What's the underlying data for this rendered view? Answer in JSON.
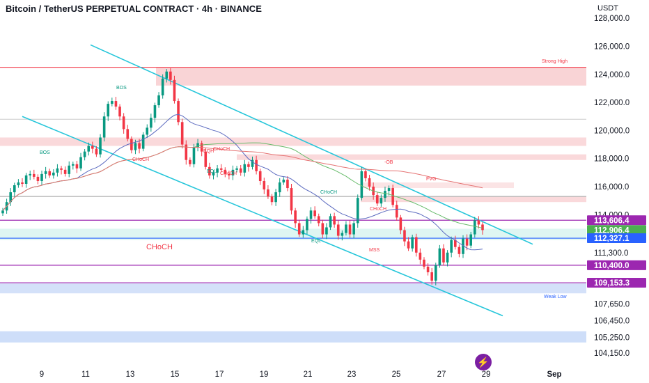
{
  "header": {
    "title": "Bitcoin / TetherUS PERPETUAL CONTRACT · 4h · BINANCE",
    "currency": "USDT"
  },
  "colors": {
    "bull": "#089981",
    "bear": "#f23645",
    "channel": "#26c6da",
    "purple": "#9c27b0",
    "zone_red": "#f8c9cc",
    "zone_blue": "#c9daf8",
    "zone_teal": "#c8f0ea",
    "tag_current": "#4caf50",
    "tag_blue": "#2962ff"
  },
  "icons": {
    "bolt": "lightning-bolt-icon"
  },
  "chart_data": {
    "type": "candlestick",
    "title": "Bitcoin / TetherUS PERPETUAL CONTRACT · 4h · BINANCE",
    "timeframe": "4h",
    "ylim": [
      103500,
      128800
    ],
    "price_scale_labels": [
      "128,000.0",
      "126,000.0",
      "124,000.0",
      "122,000.0",
      "120,000.0",
      "118,000.0",
      "116,000.0",
      "114,000.0",
      "111,300.0",
      "107,650.0",
      "106,450.0",
      "105,250.0",
      "104,150.0"
    ],
    "x_tick_labels": [
      "9",
      "11",
      "13",
      "15",
      "17",
      "19",
      "21",
      "23",
      "25",
      "27",
      "29",
      "Sep"
    ],
    "price_tags": [
      {
        "label": "113,606.4",
        "value": 113606.4,
        "kind": "purple"
      },
      {
        "label": "112,906.4",
        "value": 112906.4,
        "kind": "current"
      },
      {
        "label": "112,327.1",
        "value": 112327.1,
        "kind": "blue"
      },
      {
        "label": "110,400.0",
        "value": 110400,
        "kind": "purple"
      },
      {
        "label": "109,153.3",
        "value": 109153.3,
        "kind": "purple"
      }
    ],
    "closes": [
      114300,
      114900,
      115600,
      116100,
      116300,
      116200,
      116800,
      116900,
      116700,
      116400,
      116900,
      117100,
      116800,
      117000,
      117300,
      117200,
      116900,
      117500,
      117600,
      117300,
      118100,
      118500,
      118900,
      118700,
      118300,
      119500,
      121000,
      121900,
      122100,
      121700,
      121000,
      120100,
      119400,
      118600,
      119100,
      118700,
      119700,
      120200,
      120900,
      121800,
      122500,
      123700,
      124200,
      123600,
      122100,
      120600,
      119000,
      117900,
      117600,
      118800,
      119100,
      118500,
      117400,
      116800,
      117000,
      117300,
      117200,
      116900,
      116800,
      117200,
      117300,
      117000,
      117600,
      117400,
      117900,
      117100,
      116400,
      115800,
      115300,
      114900,
      115600,
      116300,
      116500,
      115900,
      114300,
      113400,
      112600,
      112900,
      113700,
      114300,
      113900,
      113400,
      112600,
      113100,
      113900,
      113300,
      112500,
      112700,
      113300,
      112600,
      113400,
      115200,
      117100,
      116600,
      116000,
      115400,
      114800,
      115200,
      115700,
      115900,
      114700,
      113800,
      112900,
      112100,
      111600,
      112400,
      111300,
      110800,
      110300,
      109900,
      109300,
      110400,
      111600,
      110600,
      111300,
      112200,
      111700,
      111200,
      112300,
      111800,
      112600,
      113600,
      113300,
      112906.4
    ],
    "series": [
      {
        "name": "",
        "values": [],
        "note": ""
      }
    ],
    "annotations": [
      {
        "text": "BOS",
        "color": "bull"
      },
      {
        "text": "BOS",
        "color": "bull"
      },
      {
        "text": "CHoCH",
        "color": "bear"
      },
      {
        "text": "EQH",
        "color": "bear"
      },
      {
        "text": "CHoCH",
        "color": "bear"
      },
      {
        "text": "EQL",
        "color": "bull"
      },
      {
        "text": "CHoCH",
        "color": "bear"
      },
      {
        "text": "CHoCH",
        "color": "bull"
      },
      {
        "text": "CHoCH",
        "color": "bear"
      },
      {
        "text": "EQL",
        "color": "bull"
      },
      {
        "text": "MSS",
        "color": "bear"
      },
      {
        "text": "-OB",
        "color": "bear"
      },
      {
        "text": "FVG",
        "color": "bear"
      },
      {
        "text": "Strong High",
        "color": "bear"
      },
      {
        "text": "Weak Low",
        "color": "blue"
      },
      {
        "text": "CHoCH",
        "color": "bear"
      }
    ]
  }
}
